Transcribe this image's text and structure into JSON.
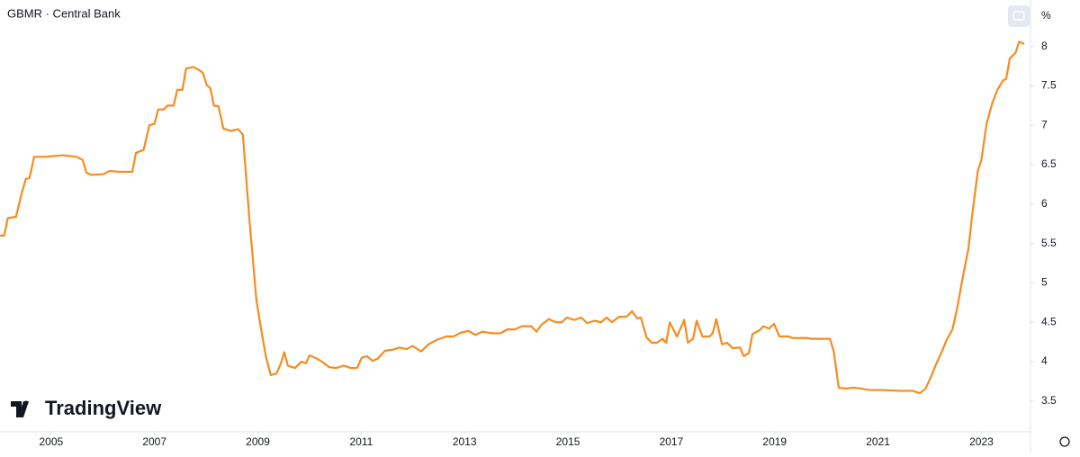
{
  "chart_data": {
    "type": "line",
    "title": "GBMR · Central Bank",
    "unit_label": "%",
    "watermark": "TradingView",
    "color": "#f68c1f",
    "x": [
      2004.01,
      2004.09,
      2004.16,
      2004.32,
      2004.43,
      2004.51,
      2004.58,
      2004.67,
      2004.88,
      2005.23,
      2005.49,
      2005.61,
      2005.68,
      2005.78,
      2006.01,
      2006.13,
      2006.32,
      2006.57,
      2006.64,
      2006.79,
      2006.9,
      2007.0,
      2007.07,
      2007.18,
      2007.25,
      2007.37,
      2007.44,
      2007.54,
      2007.61,
      2007.75,
      2007.87,
      2007.94,
      2008.01,
      2008.08,
      2008.15,
      2008.24,
      2008.33,
      2008.47,
      2008.62,
      2008.71,
      2008.83,
      2008.97,
      2009.06,
      2009.16,
      2009.25,
      2009.36,
      2009.44,
      2009.51,
      2009.58,
      2009.72,
      2009.84,
      2009.93,
      2010.0,
      2010.14,
      2010.24,
      2010.38,
      2010.52,
      2010.66,
      2010.8,
      2010.92,
      2011.01,
      2011.11,
      2011.22,
      2011.32,
      2011.46,
      2011.6,
      2011.74,
      2011.88,
      2011.99,
      2012.16,
      2012.3,
      2012.47,
      2012.65,
      2012.79,
      2012.93,
      2013.07,
      2013.21,
      2013.34,
      2013.55,
      2013.69,
      2013.83,
      2013.97,
      2014.11,
      2014.29,
      2014.39,
      2014.49,
      2014.63,
      2014.77,
      2014.88,
      2014.98,
      2015.12,
      2015.26,
      2015.37,
      2015.51,
      2015.64,
      2015.75,
      2015.85,
      2015.99,
      2016.13,
      2016.24,
      2016.34,
      2016.41,
      2016.52,
      2016.62,
      2016.72,
      2016.83,
      2016.9,
      2016.97,
      2017.11,
      2017.25,
      2017.32,
      2017.42,
      2017.49,
      2017.6,
      2017.74,
      2017.8,
      2017.87,
      2017.98,
      2018.08,
      2018.19,
      2018.33,
      2018.4,
      2018.5,
      2018.57,
      2018.71,
      2018.78,
      2018.89,
      2018.99,
      2019.09,
      2019.27,
      2019.34,
      2019.62,
      2019.72,
      2020.07,
      2020.14,
      2020.24,
      2020.38,
      2020.52,
      2020.66,
      2020.84,
      2021.08,
      2021.43,
      2021.67,
      2021.81,
      2021.92,
      2022.02,
      2022.13,
      2022.23,
      2022.33,
      2022.44,
      2022.54,
      2022.65,
      2022.75,
      2022.82,
      2022.93,
      2023.0,
      2023.1,
      2023.21,
      2023.31,
      2023.42,
      2023.48,
      2023.55,
      2023.66,
      2023.73,
      2023.83
    ],
    "values": [
      5.6,
      5.6,
      5.82,
      5.84,
      6.14,
      6.32,
      6.33,
      6.6,
      6.6,
      6.62,
      6.6,
      6.56,
      6.4,
      6.37,
      6.38,
      6.42,
      6.41,
      6.41,
      6.65,
      6.69,
      7.0,
      7.02,
      7.2,
      7.2,
      7.25,
      7.25,
      7.45,
      7.45,
      7.72,
      7.74,
      7.7,
      7.66,
      7.51,
      7.47,
      7.25,
      7.24,
      6.96,
      6.93,
      6.95,
      6.88,
      5.85,
      4.79,
      4.42,
      4.05,
      3.83,
      3.85,
      3.97,
      4.12,
      3.95,
      3.92,
      4.0,
      3.98,
      4.08,
      4.04,
      4.0,
      3.93,
      3.92,
      3.95,
      3.92,
      3.92,
      4.05,
      4.07,
      4.01,
      4.04,
      4.14,
      4.15,
      4.18,
      4.16,
      4.2,
      4.13,
      4.22,
      4.28,
      4.32,
      4.32,
      4.37,
      4.39,
      4.34,
      4.38,
      4.36,
      4.36,
      4.41,
      4.41,
      4.45,
      4.45,
      4.38,
      4.47,
      4.54,
      4.5,
      4.5,
      4.56,
      4.53,
      4.56,
      4.49,
      4.52,
      4.5,
      4.56,
      4.5,
      4.57,
      4.57,
      4.64,
      4.55,
      4.56,
      4.31,
      4.24,
      4.24,
      4.29,
      4.24,
      4.5,
      4.32,
      4.53,
      4.24,
      4.29,
      4.52,
      4.32,
      4.32,
      4.36,
      4.54,
      4.22,
      4.24,
      4.17,
      4.18,
      4.07,
      4.11,
      4.35,
      4.4,
      4.45,
      4.42,
      4.48,
      4.32,
      4.32,
      4.3,
      4.3,
      4.29,
      4.29,
      4.14,
      3.67,
      3.66,
      3.67,
      3.66,
      3.64,
      3.64,
      3.63,
      3.63,
      3.6,
      3.66,
      3.8,
      3.98,
      4.12,
      4.28,
      4.41,
      4.71,
      5.11,
      5.44,
      5.85,
      6.42,
      6.56,
      7.02,
      7.28,
      7.45,
      7.57,
      7.59,
      7.85,
      7.92,
      8.06,
      8.03
    ],
    "xlim": [
      2004.01,
      2023.95
    ],
    "xticks": [
      2005,
      2007,
      2009,
      2011,
      2013,
      2015,
      2017,
      2019,
      2021,
      2023
    ],
    "ylim": [
      3.11,
      8.59
    ],
    "yticks": [
      3.5,
      4,
      4.5,
      5,
      5.5,
      6,
      6.5,
      7,
      7.5,
      8
    ],
    "grid": false
  }
}
